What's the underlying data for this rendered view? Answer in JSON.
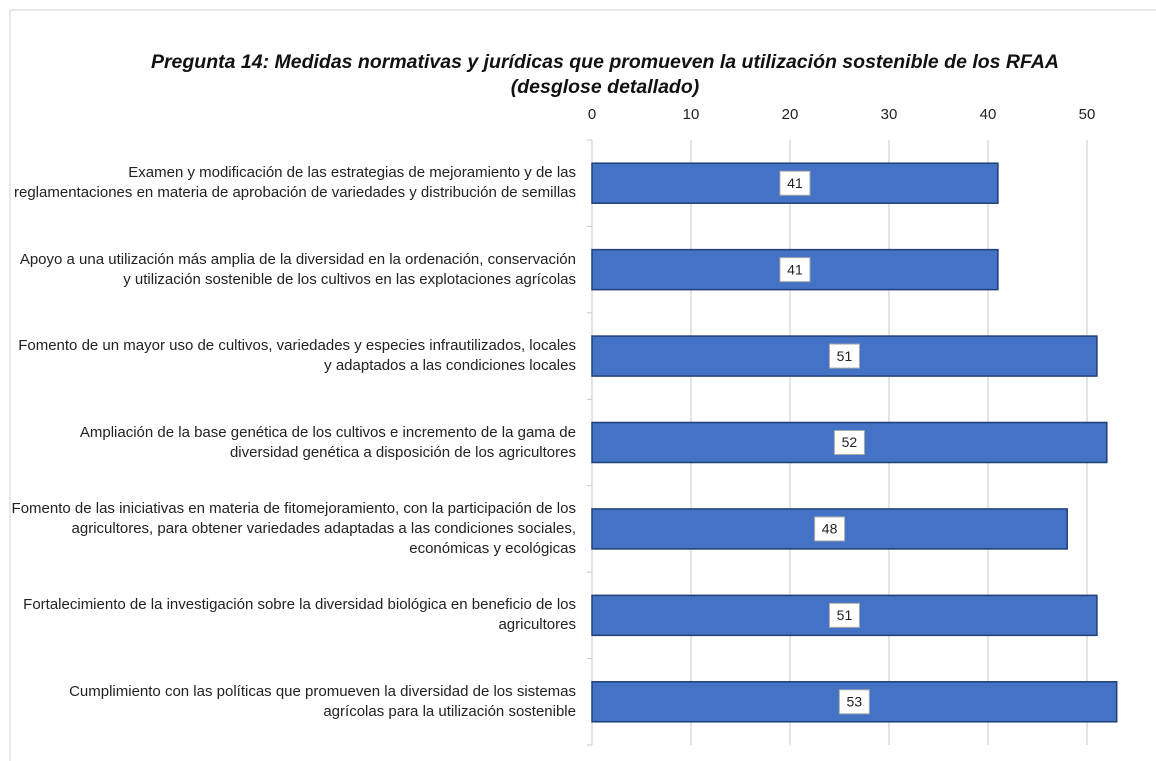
{
  "chart_data": {
    "type": "bar",
    "orientation": "horizontal",
    "title": "Pregunta 14: Medidas normativas y jurídicas que promueven la utilización sostenible de los RFAA (desglose detallado)",
    "categories": [
      "Examen y modificación de las estrategias de mejoramiento y de las reglamentaciones en materia de aprobación de variedades y distribución de semillas",
      "Apoyo a una utilización más amplia de la diversidad en la ordenación, conservación y utilización sostenible de los cultivos en las explotaciones agrícolas",
      "Fomento de un mayor uso de cultivos, variedades y especies infrautilizados, locales y adaptados a las condiciones locales",
      "Ampliación de la base genética de los cultivos e incremento de la gama de diversidad genética a disposición de los agricultores",
      "Fomento de las iniciativas en materia de fitomejoramiento, con la participación de los agricultores, para obtener variedades adaptadas a las condiciones sociales, económicas y ecológicas",
      "Fortalecimiento de la investigación sobre la diversidad biológica en beneficio de los agricultores",
      "Cumplimiento con las políticas que promueven la diversidad de los sistemas agrícolas para la utilización sostenible"
    ],
    "values": [
      41,
      41,
      51,
      52,
      48,
      51,
      53
    ],
    "color": "#4472c4",
    "xlim": [
      0,
      54
    ],
    "xticks": [
      0,
      10,
      20,
      30,
      40,
      50
    ],
    "grid": true
  }
}
